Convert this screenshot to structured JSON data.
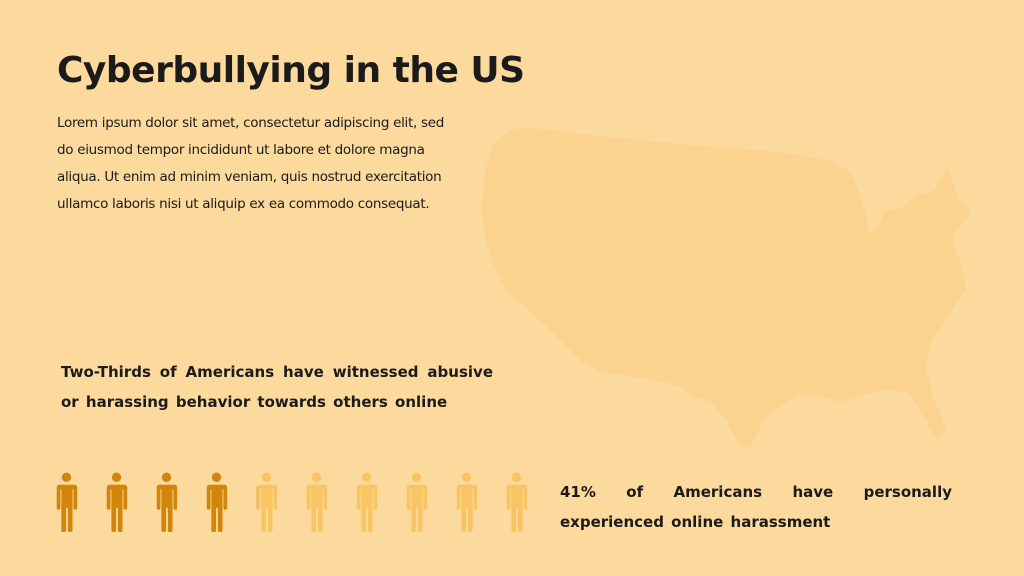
{
  "title": "Cyberbullying in the US",
  "body": "Lorem ipsum dolor sit amet, consectetur adipiscing elit, sed do eiusmod tempor incididunt ut labore et dolore magna aliqua. Ut enim ad minim veniam, quis nostrud exercitation ullamco laboris nisi ut aliquip ex ea commodo consequat.",
  "stats": [
    {
      "text": "Two-Thirds of Americans have witnessed abusive or harassing behavior towards others online",
      "fraction": 0.667,
      "visual": "us-map-fill"
    },
    {
      "text": "41% of Americans have personally experienced online harassment",
      "fraction": 0.41,
      "visual": "people-pictograph",
      "icon_count": 10
    }
  ],
  "colors": {
    "background": "#FCD99D",
    "accent": "#D1850A",
    "light": "#F9C462",
    "map_light": "#F9D38F",
    "text": "#1b1b1b"
  },
  "icons": {
    "map": "us-map-icon",
    "person": "person-icon"
  }
}
